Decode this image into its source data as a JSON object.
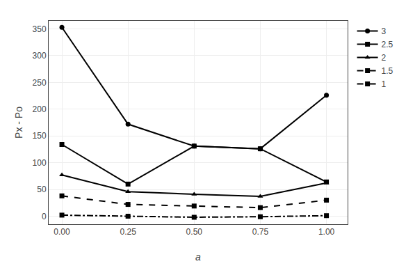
{
  "chart_data": {
    "type": "line",
    "x": [
      0.0,
      0.25,
      0.5,
      0.75,
      1.0
    ],
    "series": [
      {
        "name": "3",
        "values": [
          353,
          172,
          131,
          126,
          226
        ],
        "color": "black",
        "marker": "circle",
        "line_style": "solid"
      },
      {
        "name": "2.5",
        "values": [
          134,
          60,
          131,
          126,
          64
        ],
        "color": "black",
        "marker": "square",
        "line_style": "solid"
      },
      {
        "name": "2",
        "values": [
          77,
          46,
          41,
          37,
          62
        ],
        "color": "black",
        "marker": "triangle-up",
        "line_style": "solid"
      },
      {
        "name": "1.5",
        "values": [
          38,
          22,
          19,
          16,
          30
        ],
        "color": "black",
        "marker": "square",
        "line_style": "dashed"
      },
      {
        "name": "1",
        "values": [
          2,
          0,
          -2,
          -1,
          1
        ],
        "color": "black",
        "marker": "square",
        "line_style": "dashdot"
      }
    ],
    "xlabel": "a",
    "ylabel": "Px - Po",
    "xlim": [
      -0.05,
      1.08
    ],
    "ylim": [
      -15,
      365
    ],
    "xticks": [
      {
        "value": 0.0,
        "label": "0.00"
      },
      {
        "value": 0.25,
        "label": "0.25"
      },
      {
        "value": 0.5,
        "label": "0.50"
      },
      {
        "value": 0.75,
        "label": "0.75"
      },
      {
        "value": 1.0,
        "label": "1.00"
      }
    ],
    "yticks": [
      0,
      50,
      100,
      150,
      200,
      250,
      300,
      350
    ],
    "grid": true,
    "legend": "upper right"
  }
}
